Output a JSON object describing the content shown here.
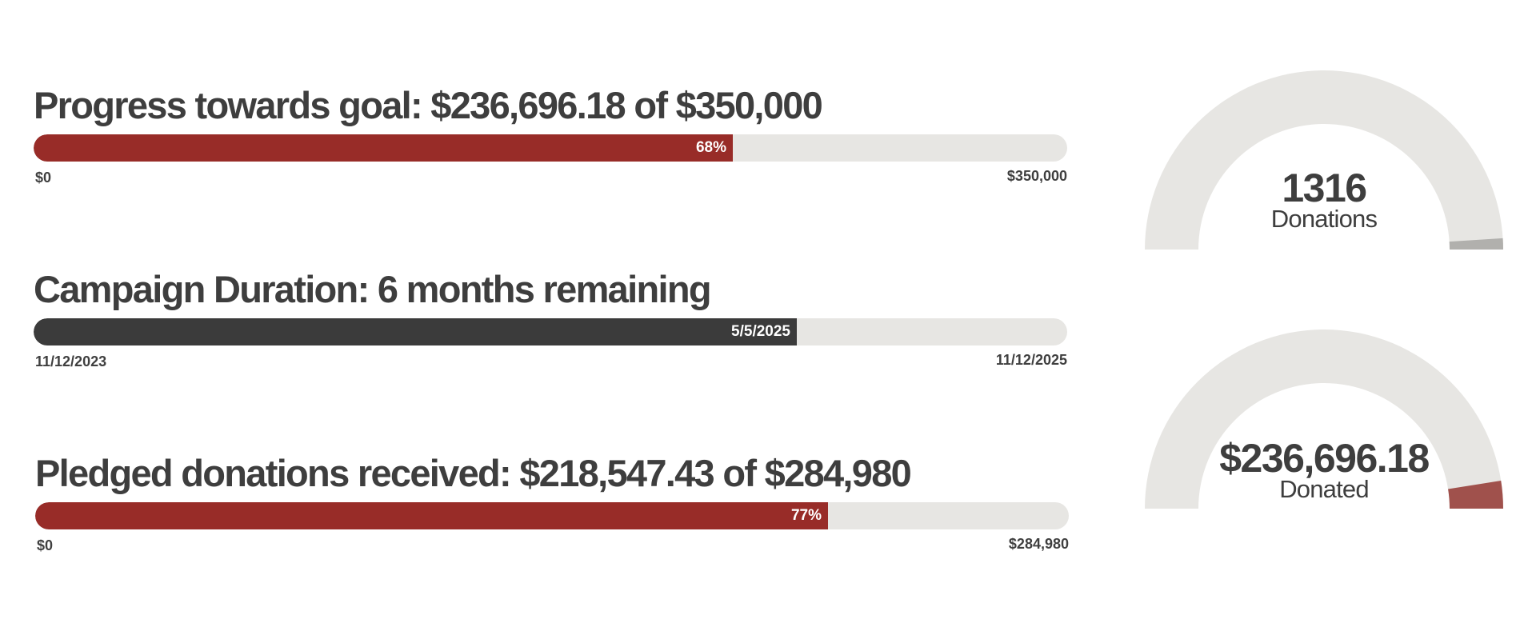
{
  "chart_data": [
    {
      "type": "bar",
      "title": "Progress towards goal: $236,696.18 of $350,000",
      "value": 236696.18,
      "max": 350000,
      "fill_label": "68%",
      "start_label": "$0",
      "end_label": "$350,000",
      "color": "#982c28"
    },
    {
      "type": "bar",
      "title": "Campaign Duration: 6 months remaining",
      "start_date": "11/12/2023",
      "end_date": "11/12/2025",
      "current_date": "5/5/2025",
      "fill_label": "5/5/2025",
      "start_label": "11/12/2023",
      "end_label": "11/12/2025",
      "color": "#3b3b3b"
    },
    {
      "type": "bar",
      "title": "Pledged donations received: $218,547.43 of $284,980",
      "value": 218547.43,
      "max": 284980,
      "fill_label": "77%",
      "start_label": "$0",
      "end_label": "$284,980",
      "color": "#982c28"
    },
    {
      "type": "gauge",
      "value_text": "1316",
      "label": "Donations",
      "fill_fraction": 0.02,
      "fill_color": "#b1b0ad",
      "track_color": "#e7e6e3"
    },
    {
      "type": "gauge",
      "value_text": "$236,696.18",
      "label": "Donated",
      "fill_fraction": 0.05,
      "fill_color": "#a0514c",
      "track_color": "#e7e6e3"
    }
  ]
}
